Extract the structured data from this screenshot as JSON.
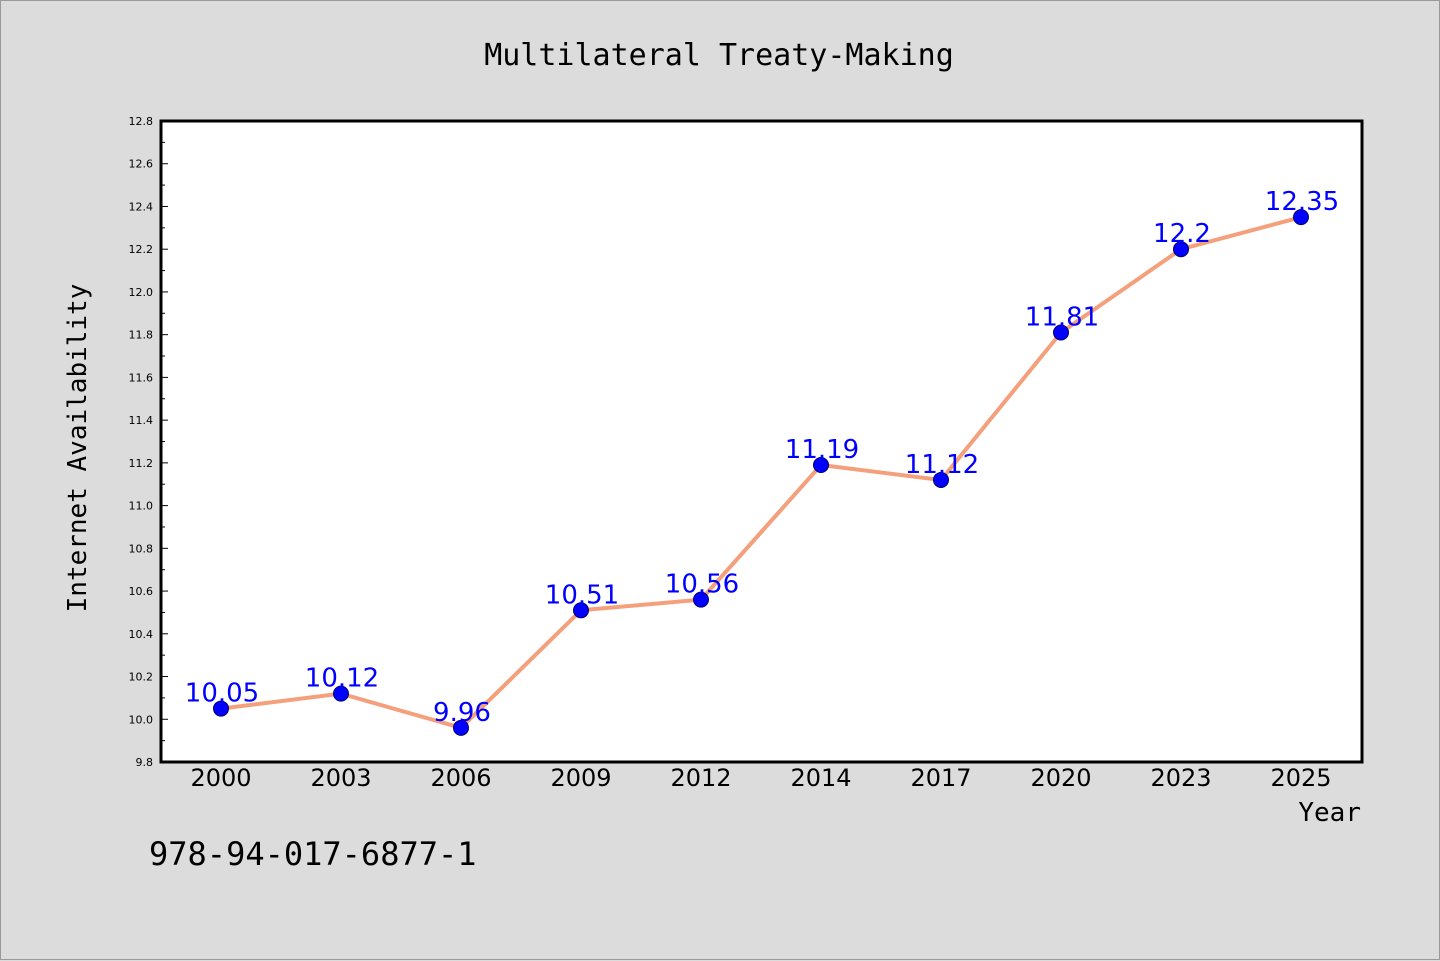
{
  "chart_data": {
    "type": "line",
    "title": "Multilateral Treaty-Making",
    "xlabel": "Year",
    "ylabel": "Internet Availability",
    "categories": [
      "2000",
      "2003",
      "2006",
      "2009",
      "2012",
      "2014",
      "2017",
      "2020",
      "2023",
      "2025"
    ],
    "series": [
      {
        "values": [
          10.05,
          10.12,
          9.96,
          10.51,
          10.56,
          11.19,
          11.12,
          11.81,
          12.2,
          12.35
        ],
        "data_labels": [
          "10.05",
          "10.12",
          "9.96",
          "10.51",
          "10.56",
          "11.19",
          "11.12",
          "11.81",
          "12.2",
          "12.35"
        ],
        "line_color": "#f4a07c",
        "marker_color": "#0000ff"
      }
    ],
    "ylim": [
      9.8,
      12.8
    ],
    "yticks": [
      "9.8",
      "10.0",
      "10.2",
      "10.4",
      "10.6",
      "10.8",
      "11.0",
      "11.2",
      "11.4",
      "11.6",
      "11.8",
      "12.0",
      "12.2",
      "12.4",
      "12.6",
      "12.8"
    ],
    "grid": false,
    "legend": "none"
  },
  "footer": {
    "isbn": "978-94-017-6877-1"
  },
  "colors": {
    "background": "#dcdcdc",
    "plot_background": "#ffffff",
    "data_label": "#0000ff"
  }
}
